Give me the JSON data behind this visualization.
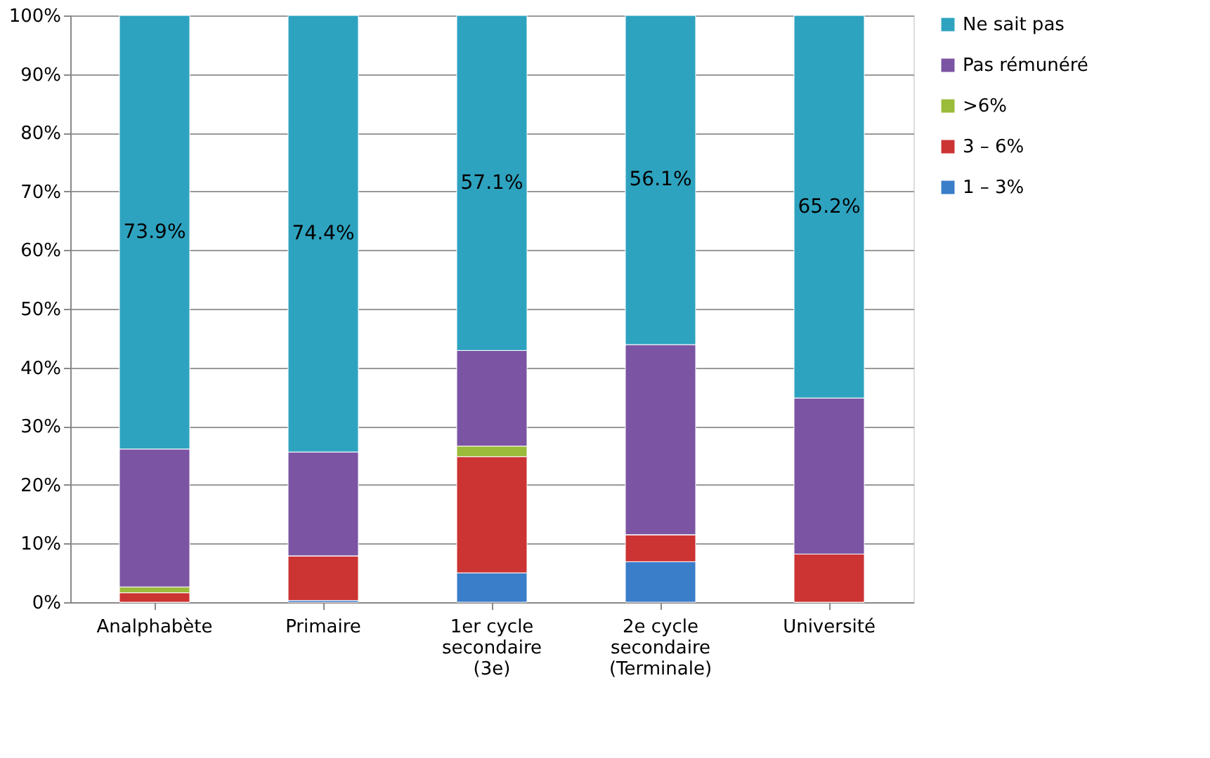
{
  "chart_data": {
    "type": "bar",
    "stacked": true,
    "categories": [
      "Analphabète",
      "Primaire",
      "1er cycle\nsecondaire\n(3e)",
      "2e cycle\nsecondaire\n(Terminale)",
      "Université"
    ],
    "series": [
      {
        "name": "1 – 3%",
        "color": "#3a7dc9",
        "values": [
          0,
          0.3,
          5.0,
          6.9,
          0
        ]
      },
      {
        "name": "3 – 6%",
        "color": "#cc3333",
        "values": [
          1.6,
          7.6,
          19.8,
          4.6,
          8.2
        ]
      },
      {
        "name": ">6%",
        "color": "#9bbb3b",
        "values": [
          1.0,
          0,
          1.8,
          0,
          0
        ]
      },
      {
        "name": "Pas rémunéré",
        "color": "#7b54a3",
        "values": [
          23.5,
          17.7,
          16.3,
          32.4,
          26.6
        ]
      },
      {
        "name": "Ne sait pas",
        "color": "#2ea3c0",
        "values": [
          73.9,
          74.4,
          57.1,
          56.1,
          65.2
        ],
        "value_labels": [
          "73.9%",
          "74.4%",
          "57.1%",
          "56.1%",
          "65.2%"
        ]
      }
    ],
    "ylim": [
      0,
      100
    ],
    "yticks": [
      {
        "value": 0,
        "label": "0%"
      },
      {
        "value": 10,
        "label": "10%"
      },
      {
        "value": 20,
        "label": "20%"
      },
      {
        "value": 30,
        "label": "30%"
      },
      {
        "value": 40,
        "label": "40%"
      },
      {
        "value": 50,
        "label": "50%"
      },
      {
        "value": 60,
        "label": "60%"
      },
      {
        "value": 70,
        "label": "70%"
      },
      {
        "value": 80,
        "label": "80%"
      },
      {
        "value": 90,
        "label": "90%"
      },
      {
        "value": 100,
        "label": "100%"
      }
    ],
    "grid": "y",
    "legend": "right"
  }
}
